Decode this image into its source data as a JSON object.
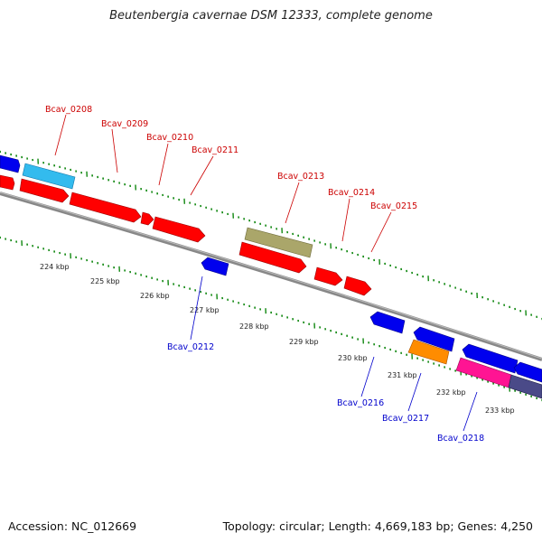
{
  "title": "Beutenbergia cavernae DSM 12333, complete genome",
  "footer": {
    "accession": "Accession: NC_012669",
    "topology": "Topology: circular; Length: 4,669,183 bp; Genes: 4,250"
  },
  "colors": {
    "forward_gene": "#ff0000",
    "reverse_gene": "#0000ee",
    "rrna_like": "#aaa66a",
    "light_blue_gene": "#33bbee",
    "orange_gene": "#ff8c00",
    "magenta_gene": "#ff1493",
    "slate_gene": "#4a4a88",
    "backbone": "#888888",
    "tick_green": "#118811",
    "label_red": "#cc0000",
    "label_blue": "#0000cc"
  },
  "kbp_ticks": [
    "224 kbp",
    "225 kbp",
    "226 kbp",
    "227 kbp",
    "228 kbp",
    "229 kbp",
    "230 kbp",
    "231 kbp",
    "232 kbp",
    "233 kbp"
  ],
  "forward_labels": [
    "Bcav_0208",
    "Bcav_0209",
    "Bcav_0210",
    "Bcav_0211",
    "Bcav_0213",
    "Bcav_0214",
    "Bcav_0215"
  ],
  "reverse_labels": [
    "Bcav_0212",
    "Bcav_0216",
    "Bcav_0217",
    "Bcav_0218"
  ]
}
